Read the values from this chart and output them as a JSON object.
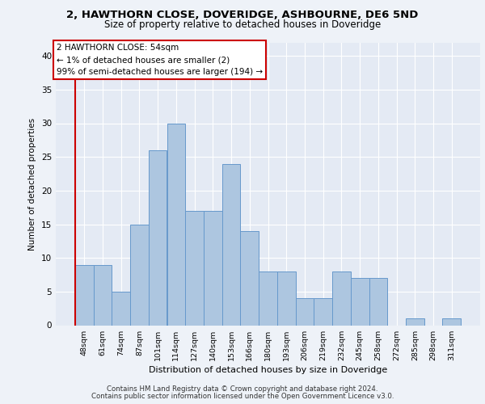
{
  "title1": "2, HAWTHORN CLOSE, DOVERIDGE, ASHBOURNE, DE6 5ND",
  "title2": "Size of property relative to detached houses in Doveridge",
  "xlabel": "Distribution of detached houses by size in Doveridge",
  "ylabel": "Number of detached properties",
  "categories": [
    "48sqm",
    "61sqm",
    "74sqm",
    "87sqm",
    "101sqm",
    "114sqm",
    "127sqm",
    "140sqm",
    "153sqm",
    "166sqm",
    "180sqm",
    "193sqm",
    "206sqm",
    "219sqm",
    "232sqm",
    "245sqm",
    "258sqm",
    "272sqm",
    "285sqm",
    "298sqm",
    "311sqm"
  ],
  "values": [
    9,
    9,
    5,
    15,
    26,
    30,
    17,
    17,
    24,
    14,
    8,
    8,
    4,
    4,
    8,
    7,
    7,
    0,
    1,
    0,
    1
  ],
  "bar_color": "#adc6e0",
  "bar_edge_color": "#6699cc",
  "highlight_color": "#cc0000",
  "annotation_line1": "2 HAWTHORN CLOSE: 54sqm",
  "annotation_line2": "← 1% of detached houses are smaller (2)",
  "annotation_line3": "99% of semi-detached houses are larger (194) →",
  "annotation_box_color": "#ffffff",
  "annotation_box_edge_color": "#cc0000",
  "ylim": [
    0,
    42
  ],
  "yticks": [
    0,
    5,
    10,
    15,
    20,
    25,
    30,
    35,
    40
  ],
  "footer1": "Contains HM Land Registry data © Crown copyright and database right 2024.",
  "footer2": "Contains public sector information licensed under the Open Government Licence v3.0.",
  "bg_color": "#eef2f8",
  "plot_bg_color": "#e4eaf4"
}
